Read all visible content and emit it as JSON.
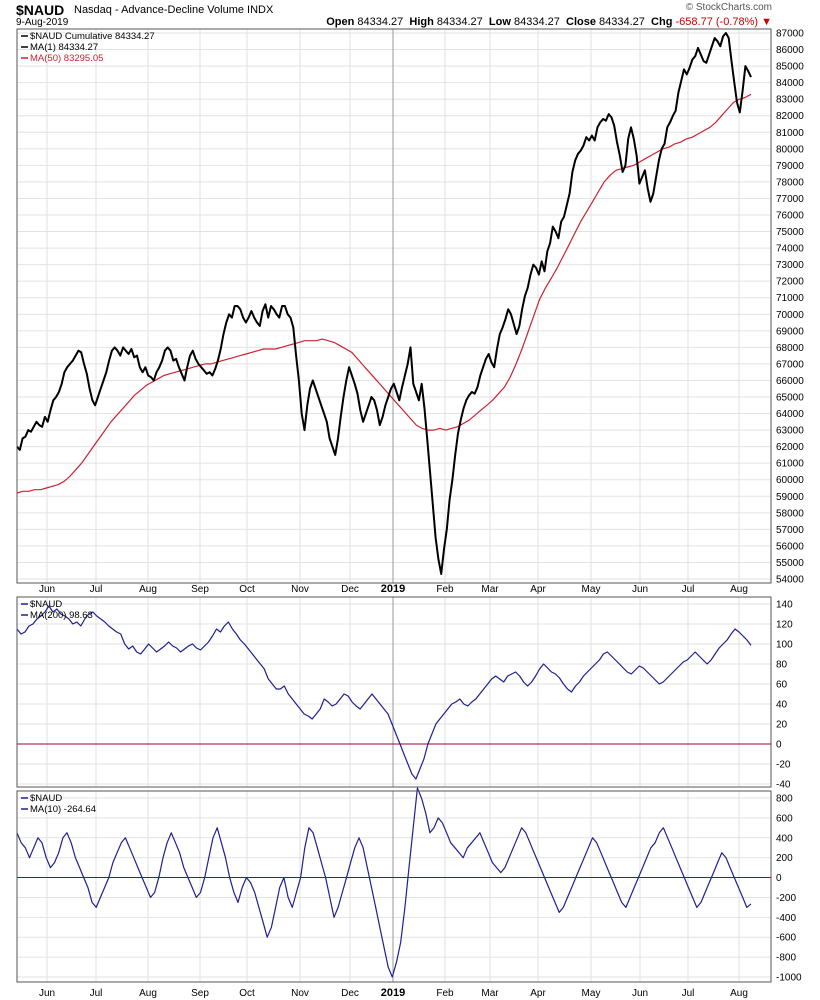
{
  "header": {
    "symbol": "$NAUD",
    "name": "Nasdaq - Advance-Decline Volume",
    "exchange": "INDX",
    "date": "9-Aug-2019",
    "brand": "© StockCharts.com",
    "open_label": "Open",
    "open": "84334.27",
    "high_label": "High",
    "high": "84334.27",
    "low_label": "Low",
    "low": "84334.27",
    "close_label": "Close",
    "close": "84334.27",
    "chg_label": "Chg",
    "chg": "-658.77 (-0.78%)",
    "down_arrow": "▼"
  },
  "colors": {
    "price": "#000000",
    "ma50": "#cc2233",
    "indicator": "#1f1f8f",
    "zero": "#990033",
    "grid": "#e2e2e2"
  },
  "chart_data": [
    {
      "type": "line",
      "panel": "main",
      "legend": [
        "$NAUD Cumulative 84334.27",
        "MA(1) 84334.27",
        "MA(50) 83295.05"
      ],
      "ylim": [
        54000,
        87000
      ],
      "y_ticks": [
        "54000",
        "55000",
        "56000",
        "57000",
        "58000",
        "59000",
        "60000",
        "61000",
        "62000",
        "63000",
        "64000",
        "65000",
        "66000",
        "67000",
        "68000",
        "69000",
        "70000",
        "71000",
        "72000",
        "73000",
        "74000",
        "75000",
        "76000",
        "77000",
        "78000",
        "79000",
        "80000",
        "81000",
        "82000",
        "83000",
        "84000",
        "85000",
        "86000",
        "87000"
      ],
      "x_labels": [
        "Jun",
        "Jul",
        "Aug",
        "Sep",
        "Oct",
        "Nov",
        "Dec",
        "2019",
        "Feb",
        "Mar",
        "Apr",
        "May",
        "Jun",
        "Jul",
        "Aug"
      ],
      "series": [
        {
          "name": "$NAUD Cumulative",
          "values": [
            62000,
            61800,
            62500,
            62600,
            63000,
            62900,
            63200,
            63500,
            63300,
            63200,
            63800,
            63500,
            64200,
            64800,
            65000,
            65300,
            65800,
            66500,
            66800,
            67000,
            67200,
            67500,
            67800,
            67700,
            67000,
            66400,
            65500,
            64800,
            64500,
            65000,
            65500,
            66000,
            66500,
            67200,
            67800,
            68000,
            67800,
            67500,
            68000,
            67800,
            67600,
            67900,
            67400,
            67500,
            66800,
            66500,
            66800,
            66300,
            66200,
            66000,
            66500,
            66800,
            67200,
            67800,
            68000,
            67800,
            67200,
            67300,
            66800,
            66400,
            66000,
            66800,
            67500,
            67800,
            67300,
            67000,
            66800,
            66600,
            66400,
            66500,
            66300,
            66700,
            67200,
            67900,
            68800,
            69500,
            70000,
            69800,
            70500,
            70500,
            70300,
            69800,
            69500,
            69800,
            70200,
            69800,
            69500,
            69300,
            70200,
            70600,
            69800,
            70500,
            70300,
            70000,
            69800,
            70500,
            70500,
            70000,
            69800,
            69200,
            67500,
            66000,
            64000,
            63000,
            64500,
            65500,
            66000,
            65500,
            65000,
            64500,
            64000,
            63500,
            62500,
            62000,
            61500,
            62500,
            63800,
            65000,
            66000,
            66800,
            66300,
            65800,
            65200,
            64200,
            63500,
            64000,
            64500,
            65000,
            64800,
            64200,
            63300,
            63800,
            64500,
            65000,
            65500,
            65800,
            65300,
            64800,
            65600,
            66300,
            67000,
            68000,
            65800,
            65300,
            64800,
            65800,
            64300,
            62400,
            60500,
            58500,
            56500,
            55200,
            54300,
            55800,
            57000,
            58800,
            60000,
            61500,
            62800,
            63600,
            64300,
            64800,
            65100,
            65300,
            65200,
            65600,
            66300,
            66800,
            67300,
            67600,
            67100,
            66800,
            67900,
            68800,
            69200,
            69700,
            70300,
            70000,
            69400,
            68800,
            69300,
            70300,
            71100,
            71600,
            72400,
            73000,
            72800,
            72400,
            73200,
            72600,
            73800,
            74300,
            75300,
            75000,
            74600,
            75600,
            75900,
            76600,
            77300,
            78600,
            79300,
            79700,
            79900,
            80200,
            80700,
            80500,
            80800,
            80500,
            81300,
            81600,
            81800,
            81700,
            82100,
            81900,
            81400,
            80400,
            79600,
            78600,
            79000,
            80600,
            81300,
            80600,
            79600,
            77900,
            78300,
            78700,
            77600,
            76800,
            77300,
            78300,
            79300,
            80000,
            80300,
            81300,
            81600,
            82000,
            82300,
            83400,
            84100,
            84800,
            84500,
            84900,
            85400,
            85600,
            86100,
            85700,
            85300,
            85200,
            85700,
            86200,
            86700,
            86500,
            86200,
            86800,
            87000,
            86700,
            85300,
            84000,
            82800,
            82200,
            83500,
            85000,
            84700,
            84334
          ]
        },
        {
          "name": "MA(50)",
          "values": [
            59200,
            59300,
            59300,
            59400,
            59400,
            59500,
            59600,
            59700,
            59900,
            60200,
            60600,
            61000,
            61500,
            62000,
            62500,
            63000,
            63500,
            63900,
            64300,
            64700,
            65100,
            65400,
            65700,
            65900,
            66100,
            66300,
            66400,
            66500,
            66600,
            66700,
            66800,
            66900,
            67000,
            67000,
            67100,
            67200,
            67300,
            67400,
            67500,
            67600,
            67700,
            67800,
            67900,
            67900,
            67900,
            68000,
            68100,
            68200,
            68300,
            68400,
            68400,
            68400,
            68500,
            68400,
            68300,
            68100,
            67900,
            67700,
            67300,
            66900,
            66500,
            66100,
            65700,
            65300,
            64900,
            64500,
            64100,
            63700,
            63300,
            63100,
            63000,
            63000,
            63100,
            63000,
            63100,
            63200,
            63400,
            63600,
            63900,
            64200,
            64500,
            64800,
            65200,
            65600,
            66200,
            67000,
            67900,
            68900,
            69900,
            70900,
            71600,
            72200,
            72800,
            73500,
            74200,
            74900,
            75600,
            76200,
            76800,
            77400,
            78000,
            78400,
            78700,
            78800,
            78900,
            79000,
            79200,
            79400,
            79600,
            79800,
            80000,
            80100,
            80300,
            80400,
            80600,
            80700,
            80900,
            81100,
            81300,
            81600,
            82000,
            82400,
            82800,
            83000,
            83100,
            83295
          ]
        }
      ]
    },
    {
      "type": "line",
      "panel": "ma200",
      "legend": [
        "$NAUD",
        "MA(200) 98.63"
      ],
      "ylim": [
        -40,
        140
      ],
      "y_ticks": [
        "-40",
        "-20",
        "0",
        "20",
        "40",
        "60",
        "80",
        "100",
        "120",
        "140"
      ],
      "values": [
        115,
        110,
        112,
        118,
        120,
        125,
        128,
        132,
        138,
        132,
        135,
        130,
        128,
        125,
        120,
        122,
        118,
        125,
        130,
        132,
        128,
        125,
        122,
        118,
        115,
        112,
        110,
        100,
        95,
        98,
        92,
        90,
        95,
        100,
        96,
        92,
        95,
        98,
        102,
        98,
        96,
        92,
        95,
        98,
        100,
        96,
        94,
        98,
        102,
        108,
        115,
        112,
        118,
        122,
        115,
        110,
        104,
        100,
        95,
        90,
        85,
        80,
        75,
        65,
        60,
        55,
        55,
        58,
        50,
        45,
        40,
        35,
        30,
        28,
        25,
        30,
        35,
        45,
        42,
        38,
        40,
        45,
        50,
        48,
        42,
        38,
        35,
        40,
        45,
        50,
        45,
        40,
        35,
        30,
        20,
        10,
        0,
        -10,
        -20,
        -30,
        -35,
        -25,
        -15,
        0,
        10,
        20,
        25,
        30,
        35,
        40,
        42,
        45,
        40,
        38,
        42,
        45,
        50,
        55,
        60,
        65,
        68,
        65,
        62,
        68,
        70,
        72,
        68,
        62,
        58,
        62,
        68,
        75,
        80,
        76,
        72,
        70,
        66,
        60,
        55,
        52,
        58,
        62,
        68,
        72,
        76,
        80,
        84,
        90,
        92,
        88,
        84,
        80,
        76,
        72,
        70,
        74,
        78,
        76,
        72,
        68,
        64,
        60,
        62,
        66,
        70,
        74,
        78,
        82,
        84,
        88,
        92,
        88,
        84,
        80,
        84,
        90,
        96,
        100,
        104,
        110,
        115,
        112,
        108,
        104,
        98.63
      ]
    },
    {
      "type": "line",
      "panel": "ma10",
      "legend": [
        "$NAUD",
        "MA(10) -264.64"
      ],
      "ylim": [
        -1000,
        800
      ],
      "y_ticks": [
        "-1000",
        "-800",
        "-600",
        "-400",
        "-200",
        "0",
        "200",
        "400",
        "600",
        "800"
      ],
      "values": [
        450,
        350,
        300,
        200,
        300,
        400,
        350,
        200,
        100,
        150,
        250,
        400,
        450,
        350,
        200,
        100,
        0,
        -100,
        -250,
        -300,
        -200,
        -100,
        0,
        150,
        250,
        350,
        400,
        300,
        200,
        100,
        0,
        -100,
        -200,
        -150,
        0,
        200,
        350,
        450,
        350,
        250,
        100,
        0,
        -100,
        -200,
        -150,
        0,
        200,
        400,
        500,
        350,
        200,
        0,
        -150,
        -250,
        -100,
        0,
        -50,
        -150,
        -300,
        -450,
        -600,
        -500,
        -300,
        -100,
        0,
        -200,
        -300,
        -150,
        0,
        300,
        500,
        450,
        300,
        150,
        0,
        -200,
        -400,
        -300,
        -150,
        0,
        150,
        300,
        400,
        300,
        100,
        -100,
        -300,
        -500,
        -700,
        -900,
        -1000,
        -850,
        -650,
        -300,
        100,
        500,
        900,
        800,
        650,
        450,
        500,
        600,
        550,
        450,
        350,
        300,
        250,
        200,
        300,
        350,
        400,
        450,
        350,
        250,
        150,
        100,
        50,
        100,
        200,
        300,
        400,
        500,
        450,
        350,
        250,
        150,
        50,
        -50,
        -150,
        -250,
        -350,
        -300,
        -200,
        -100,
        0,
        100,
        200,
        300,
        400,
        350,
        250,
        150,
        50,
        -50,
        -150,
        -250,
        -300,
        -200,
        -100,
        0,
        100,
        200,
        300,
        350,
        450,
        500,
        400,
        300,
        200,
        100,
        0,
        -100,
        -200,
        -300,
        -250,
        -150,
        -50,
        50,
        150,
        250,
        200,
        100,
        0,
        -100,
        -200,
        -300,
        -264.64
      ]
    }
  ]
}
